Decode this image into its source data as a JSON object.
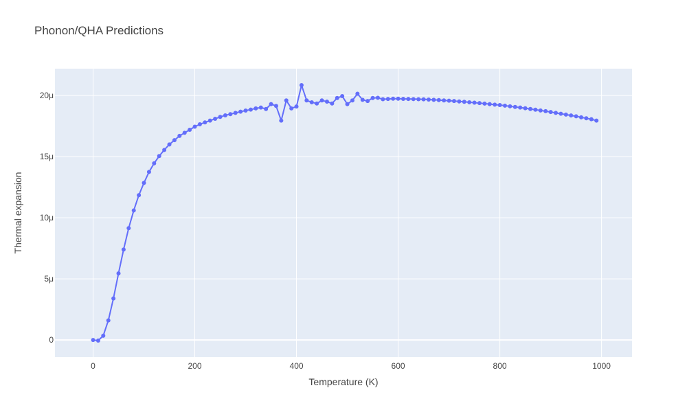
{
  "chart_data": {
    "type": "line",
    "title": "Phonon/QHA Predictions",
    "xlabel": "Temperature (K)",
    "ylabel": "Thermal expansion",
    "xlim": [
      -75,
      1060
    ],
    "ylim": [
      -1.4e-06,
      2.22e-05
    ],
    "x_ticks": [
      0,
      200,
      400,
      600,
      800,
      1000
    ],
    "x_tick_labels": [
      "0",
      "200",
      "400",
      "600",
      "800",
      "1000"
    ],
    "y_ticks": [
      0,
      5e-06,
      1e-05,
      1.5e-05,
      2e-05
    ],
    "y_tick_labels": [
      "0",
      "5μ",
      "10μ",
      "15μ",
      "20μ"
    ],
    "grid": true,
    "legend": "none",
    "colors": {
      "series": "#636efa",
      "plot_bg": "#e5ecf6",
      "grid": "#ffffff",
      "text": "#444444"
    },
    "series": [
      {
        "x": [
          0,
          10,
          20,
          30,
          40,
          50,
          60,
          70,
          80,
          90,
          100,
          110,
          120,
          130,
          140,
          150,
          160,
          170,
          180,
          190,
          200,
          210,
          220,
          230,
          240,
          250,
          260,
          270,
          280,
          290,
          300,
          310,
          320,
          330,
          340,
          350,
          360,
          370,
          380,
          390,
          400,
          410,
          420,
          430,
          440,
          450,
          460,
          470,
          480,
          490,
          500,
          510,
          520,
          530,
          540,
          550,
          560,
          570,
          580,
          590,
          600,
          610,
          620,
          630,
          640,
          650,
          660,
          670,
          680,
          690,
          700,
          710,
          720,
          730,
          740,
          750,
          760,
          770,
          780,
          790,
          800,
          810,
          820,
          830,
          840,
          850,
          860,
          870,
          880,
          890,
          900,
          910,
          920,
          930,
          940,
          950,
          960,
          970,
          980,
          990
        ],
        "y": [
          0.0,
          -5e-08,
          3.5e-07,
          1.6e-06,
          3.4e-06,
          5.45e-06,
          7.4e-06,
          9.15e-06,
          1.06e-05,
          1.185e-05,
          1.285e-05,
          1.375e-05,
          1.445e-05,
          1.505e-05,
          1.555e-05,
          1.6e-05,
          1.635e-05,
          1.67e-05,
          1.695e-05,
          1.72e-05,
          1.745e-05,
          1.765e-05,
          1.78e-05,
          1.795e-05,
          1.81e-05,
          1.825e-05,
          1.838e-05,
          1.848e-05,
          1.858e-05,
          1.868e-05,
          1.877e-05,
          1.885e-05,
          1.895e-05,
          1.902e-05,
          1.89e-05,
          1.93e-05,
          1.915e-05,
          1.795e-05,
          1.96e-05,
          1.895e-05,
          1.91e-05,
          2.085e-05,
          1.96e-05,
          1.945e-05,
          1.935e-05,
          1.96e-05,
          1.95e-05,
          1.935e-05,
          1.98e-05,
          1.995e-05,
          1.93e-05,
          1.96e-05,
          2.015e-05,
          1.965e-05,
          1.955e-05,
          1.98e-05,
          1.982e-05,
          1.97e-05,
          1.972e-05,
          1.974e-05,
          1.974e-05,
          1.973e-05,
          1.972e-05,
          1.971e-05,
          1.97e-05,
          1.969e-05,
          1.967e-05,
          1.965e-05,
          1.963e-05,
          1.96e-05,
          1.958e-05,
          1.955e-05,
          1.952e-05,
          1.949e-05,
          1.945e-05,
          1.942e-05,
          1.938e-05,
          1.934e-05,
          1.93e-05,
          1.926e-05,
          1.922e-05,
          1.917e-05,
          1.912e-05,
          1.907e-05,
          1.902e-05,
          1.896e-05,
          1.89e-05,
          1.884e-05,
          1.878e-05,
          1.872e-05,
          1.865e-05,
          1.858e-05,
          1.851e-05,
          1.844e-05,
          1.837e-05,
          1.83e-05,
          1.822e-05,
          1.814e-05,
          1.806e-05,
          1.795e-05
        ]
      }
    ]
  }
}
